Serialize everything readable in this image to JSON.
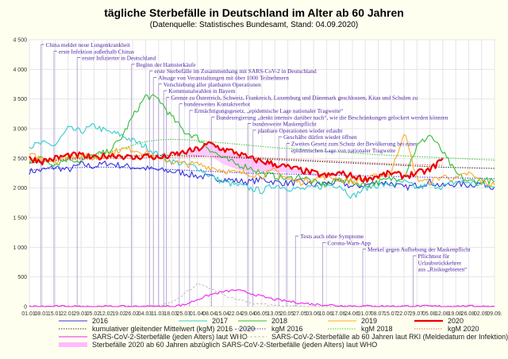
{
  "chart_data": {
    "type": "line",
    "title": "tägliche Sterbefälle in Deutschland im Alter ab 60 Jahren",
    "subtitle": "(Datenquelle: Statistisches Bundesamt, Stand: 04.09.2020)",
    "xlabel": "",
    "ylabel": "",
    "ylim": [
      0,
      4500
    ],
    "yticks": [
      0,
      500,
      1000,
      1500,
      2000,
      2500,
      3000,
      3500,
      4000,
      4500
    ],
    "ytick_labels": [
      "0",
      "500",
      "1 000",
      "1 500",
      "2 000",
      "2 500",
      "3 000",
      "3 500",
      "4 000",
      "4 500"
    ],
    "x_day_range": [
      1,
      253
    ],
    "xtick_labels": [
      "01.01.",
      "08.01.",
      "15.01.",
      "22.01.",
      "29.01.",
      "05.02.",
      "12.02.",
      "19.02.",
      "26.02.",
      "04.03.",
      "11.03.",
      "18.03.",
      "25.03.",
      "01.04.",
      "08.04.",
      "15.04.",
      "22.04.",
      "29.04.",
      "06.05.",
      "13.05.",
      "20.05.",
      "27.05.",
      "03.06.",
      "10.06.",
      "17.06.",
      "24.06.",
      "01.07.",
      "08.07.",
      "15.07.",
      "22.07.",
      "29.07.",
      "05.08.",
      "12.08.",
      "19.08.",
      "26.08.",
      "02.09.",
      "09.09."
    ],
    "grid": true,
    "legend_position": "bottom",
    "series": [
      {
        "name": "2016",
        "color": "#3333dd",
        "style": "solid",
        "weekly_values": [
          2280,
          2300,
          2350,
          2300,
          2400,
          2360,
          2420,
          2380,
          2350,
          2330,
          2300,
          2280,
          2250,
          2200,
          2180,
          2150,
          2120,
          2100,
          2150,
          2100,
          2080,
          2100,
          2050,
          2080,
          2100,
          2020,
          2050,
          2100,
          2080,
          2000,
          2050,
          2100,
          2030,
          2070,
          2050,
          2080,
          2020
        ]
      },
      {
        "name": "2017",
        "color": "#33cccc",
        "style": "solid",
        "weekly_values": [
          2700,
          2750,
          2720,
          3000,
          2950,
          3050,
          2950,
          2900,
          2800,
          2700,
          2550,
          2450,
          2400,
          2350,
          2200,
          2100,
          2050,
          2000,
          1950,
          2050,
          2000,
          1980,
          2000,
          2050,
          2050,
          1850,
          2000,
          2050,
          2050,
          2100,
          2000,
          2050,
          2020,
          2100,
          2100,
          2050,
          2000
        ]
      },
      {
        "name": "2018",
        "color": "#33bb33",
        "style": "solid",
        "weekly_values": [
          2450,
          2500,
          2400,
          2500,
          2450,
          2550,
          2600,
          2800,
          3200,
          3550,
          3500,
          3200,
          2950,
          2850,
          2650,
          2500,
          2400,
          2350,
          2250,
          2200,
          2150,
          2200,
          2100,
          2050,
          2150,
          2100,
          2050,
          2100,
          2150,
          2200,
          2700,
          2900,
          2600,
          2250,
          2100,
          2150,
          2100
        ]
      },
      {
        "name": "2019",
        "color": "#ffaa22",
        "style": "solid",
        "weekly_values": [
          2550,
          2500,
          2450,
          2550,
          2550,
          2500,
          2550,
          2650,
          2650,
          2600,
          2500,
          2450,
          2400,
          2400,
          2350,
          2300,
          2250,
          2250,
          2200,
          2300,
          2150,
          2100,
          2150,
          2200,
          2150,
          2100,
          2150,
          2200,
          2250,
          2950,
          2150,
          2100,
          2200,
          2150,
          2250,
          2100,
          2050
        ]
      },
      {
        "name": "2020",
        "color": "#ee0000",
        "style": "solid-thick",
        "weekly_values": [
          2500,
          2450,
          2500,
          2550,
          2550,
          2500,
          2550,
          2550,
          2500,
          2550,
          2500,
          2550,
          2600,
          2650,
          2750,
          2650,
          2600,
          2500,
          2450,
          2400,
          2350,
          2300,
          2250,
          2200,
          2250,
          2200,
          2150,
          2200,
          2250,
          2200,
          2250,
          2300,
          2500
        ]
      },
      {
        "name": "kumulativer gleitender Mittelwert (kgM) 2016 - 2020",
        "color": "#333333",
        "style": "dotted",
        "weekly_values": [
          2420,
          2440,
          2460,
          2480,
          2500,
          2510,
          2520,
          2530,
          2540,
          2545,
          2550,
          2550,
          2545,
          2540,
          2530,
          2520,
          2510,
          2500,
          2490,
          2480,
          2470,
          2460,
          2450,
          2440,
          2430,
          2420,
          2410,
          2400,
          2390,
          2380,
          2370,
          2360,
          2350,
          2345,
          2340,
          2335,
          2330
        ]
      },
      {
        "name": "kgM 2016",
        "color": "#4444ee",
        "style": "dotted",
        "weekly_values": [
          2300,
          2320,
          2330,
          2340,
          2345,
          2350,
          2350,
          2345,
          2340,
          2330,
          2320,
          2310,
          2300,
          2290,
          2280,
          2270,
          2260,
          2250,
          2245,
          2240,
          2235,
          2230,
          2225,
          2220,
          2215,
          2210,
          2205,
          2200,
          2195,
          2190,
          2185,
          2180,
          2175,
          2170,
          2165,
          2160,
          2155
        ]
      },
      {
        "name": "kgM 2018",
        "color": "#44cc44",
        "style": "dotted",
        "weekly_values": [
          2450,
          2470,
          2480,
          2500,
          2520,
          2560,
          2600,
          2650,
          2720,
          2780,
          2810,
          2820,
          2815,
          2800,
          2780,
          2760,
          2740,
          2720,
          2700,
          2680,
          2665,
          2650,
          2635,
          2620,
          2605,
          2590,
          2575,
          2560,
          2550,
          2540,
          2530,
          2520,
          2510,
          2500,
          2490,
          2480,
          2470
        ]
      },
      {
        "name": "kgM 2020",
        "color": "#ee6666",
        "style": "dotted",
        "weekly_values": [
          2480,
          2470,
          2475,
          2480,
          2485,
          2490,
          2495,
          2500,
          2505,
          2510,
          2512,
          2515,
          2520,
          2525,
          2530,
          2535,
          2530,
          2520,
          2510,
          2500,
          2490,
          2480,
          2470,
          2460,
          2450,
          2440,
          2430,
          2420,
          2410,
          2400,
          2395,
          2390,
          2385
        ]
      },
      {
        "name": "SARS-CoV-2-Sterbefälle (jeden Alters) laut WHO",
        "color": "#ee22ee",
        "style": "solid",
        "weekly_values": [
          0,
          0,
          0,
          0,
          0,
          0,
          0,
          0,
          0,
          0,
          0,
          5,
          30,
          120,
          200,
          250,
          280,
          230,
          170,
          120,
          90,
          60,
          40,
          30,
          15,
          10,
          8,
          5,
          5,
          5,
          5,
          5,
          5,
          5,
          5,
          5,
          5
        ]
      },
      {
        "name": "SARS-CoV-2-Sterbefälle ab 60 Jahren laut RKI (Meldedatum der Infektion)",
        "color": "#bbbbbb",
        "style": "dashed",
        "weekly_values": [
          0,
          0,
          0,
          0,
          0,
          0,
          0,
          0,
          0,
          0,
          10,
          80,
          220,
          380,
          300,
          200,
          120,
          70,
          40,
          20,
          10,
          5,
          3,
          2,
          2,
          2,
          2,
          2,
          2,
          2,
          2,
          2,
          2,
          2,
          2,
          2,
          2
        ]
      },
      {
        "name": "Sterbefälle 2020 ab 60 Jahren abzüglich SARS-CoV-2-Sterbefälle (jeden Alters) laut WHO",
        "color": "#ffaaff",
        "style": "band"
      }
    ],
    "annotations": [
      {
        "week": 0.9,
        "row": 0,
        "text": "China meldet neue Lungenkrankheit"
      },
      {
        "week": 1.9,
        "row": 1,
        "text": "erste Infektion außerhalb Chinas"
      },
      {
        "week": 3.7,
        "row": 2,
        "text": "erster Infizierter in Deutschland"
      },
      {
        "week": 7.9,
        "row": 3,
        "text": "Beginn der Hamsterkäufe"
      },
      {
        "week": 9.3,
        "row": 4,
        "text": "erste Sterbefälle im Zusammenhang mit SARS-CoV-2 in Deutschland"
      },
      {
        "week": 9.6,
        "row": 5,
        "text": "Absage von Veranstaltungen mit über 1000 Teilnehmern"
      },
      {
        "week": 10.0,
        "row": 6,
        "text": "Verschiebung aller planbaren Operationen"
      },
      {
        "week": 10.4,
        "row": 7,
        "text": "Kommunalwahlen in Bayern"
      },
      {
        "week": 10.6,
        "row": 8,
        "text": "Grenze zu Österreich, Schweiz, Frankreich, Luxemburg und Dänemark geschlossen, Kitas und Schulen zu"
      },
      {
        "week": 11.6,
        "row": 9,
        "text": "bundesweites Kontaktverbot"
      },
      {
        "week": 12.4,
        "row": 10,
        "text": "Ermächtigungsgesetz, „epidemische Lage nationaler Tragweite“"
      },
      {
        "week": 14.1,
        "row": 11,
        "text": "Bundesregierung „denkt intensiv darüber nach“, wie die Beschränkungen gelockert werden könnten"
      },
      {
        "week": 16.9,
        "row": 12,
        "text": "bundesweite Maskenpflicht"
      },
      {
        "week": 17.3,
        "row": 13,
        "text": "planbare Operationen wieder erlaubt"
      },
      {
        "week": 19.3,
        "row": 14,
        "text": "Geschäfte dürfen wieder öffnen"
      },
      {
        "week": 19.9,
        "row": 15,
        "text": "Zweites Gesetz zum Schutz der Bevölkerung bei einer"
      },
      {
        "week": 19.9,
        "row": 16,
        "text": "epidemischen Lage von nationaler Tragweite",
        "continuation": true
      },
      {
        "week": 20.6,
        "row": 17,
        "text": "Tests auch ohne Symptome"
      },
      {
        "week": 22.7,
        "row": 18,
        "text": "Corona-Warn-App"
      },
      {
        "week": 25.8,
        "row": 19,
        "text": "Merkel gegen Aufhebung der Maskenpflicht"
      },
      {
        "week": 29.7,
        "row": 20,
        "text": "Pflichttest für"
      },
      {
        "week": 29.7,
        "row": 21,
        "text": "Urlaubsrückkehrer",
        "continuation": true
      },
      {
        "week": 29.7,
        "row": 22,
        "text": "aus „Risikogebieten“",
        "continuation": true
      }
    ]
  }
}
